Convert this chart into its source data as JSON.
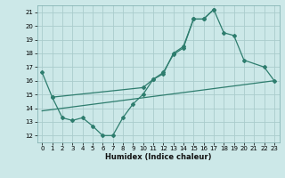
{
  "title": "",
  "xlabel": "Humidex (Indice chaleur)",
  "bg_color": "#cce8e8",
  "grid_color": "#aacccc",
  "line_color": "#2e7d6e",
  "xlim": [
    -0.5,
    23.5
  ],
  "ylim": [
    11.5,
    21.5
  ],
  "xticks": [
    0,
    1,
    2,
    3,
    4,
    5,
    6,
    7,
    8,
    9,
    10,
    11,
    12,
    13,
    14,
    15,
    16,
    17,
    18,
    19,
    20,
    21,
    22,
    23
  ],
  "yticks": [
    12,
    13,
    14,
    15,
    16,
    17,
    18,
    19,
    20,
    21
  ],
  "line1_x": [
    0,
    1,
    10,
    11,
    12,
    13,
    14,
    15,
    16,
    17,
    18,
    19,
    20,
    22,
    23
  ],
  "line1_y": [
    16.6,
    14.8,
    15.5,
    16.1,
    16.6,
    17.9,
    18.4,
    20.5,
    20.5,
    21.2,
    19.5,
    19.3,
    17.5,
    17.0,
    16.0
  ],
  "line2_x": [
    1,
    2,
    3,
    4,
    5,
    6,
    7,
    8,
    9,
    10,
    11,
    12,
    13,
    14,
    15,
    16,
    17
  ],
  "line2_y": [
    14.8,
    13.3,
    13.1,
    13.3,
    12.7,
    12.0,
    12.0,
    13.3,
    14.3,
    15.0,
    16.1,
    16.5,
    18.0,
    18.5,
    20.5,
    20.5,
    21.2
  ],
  "line3_x": [
    0,
    23
  ],
  "line3_y": [
    13.8,
    16.0
  ]
}
